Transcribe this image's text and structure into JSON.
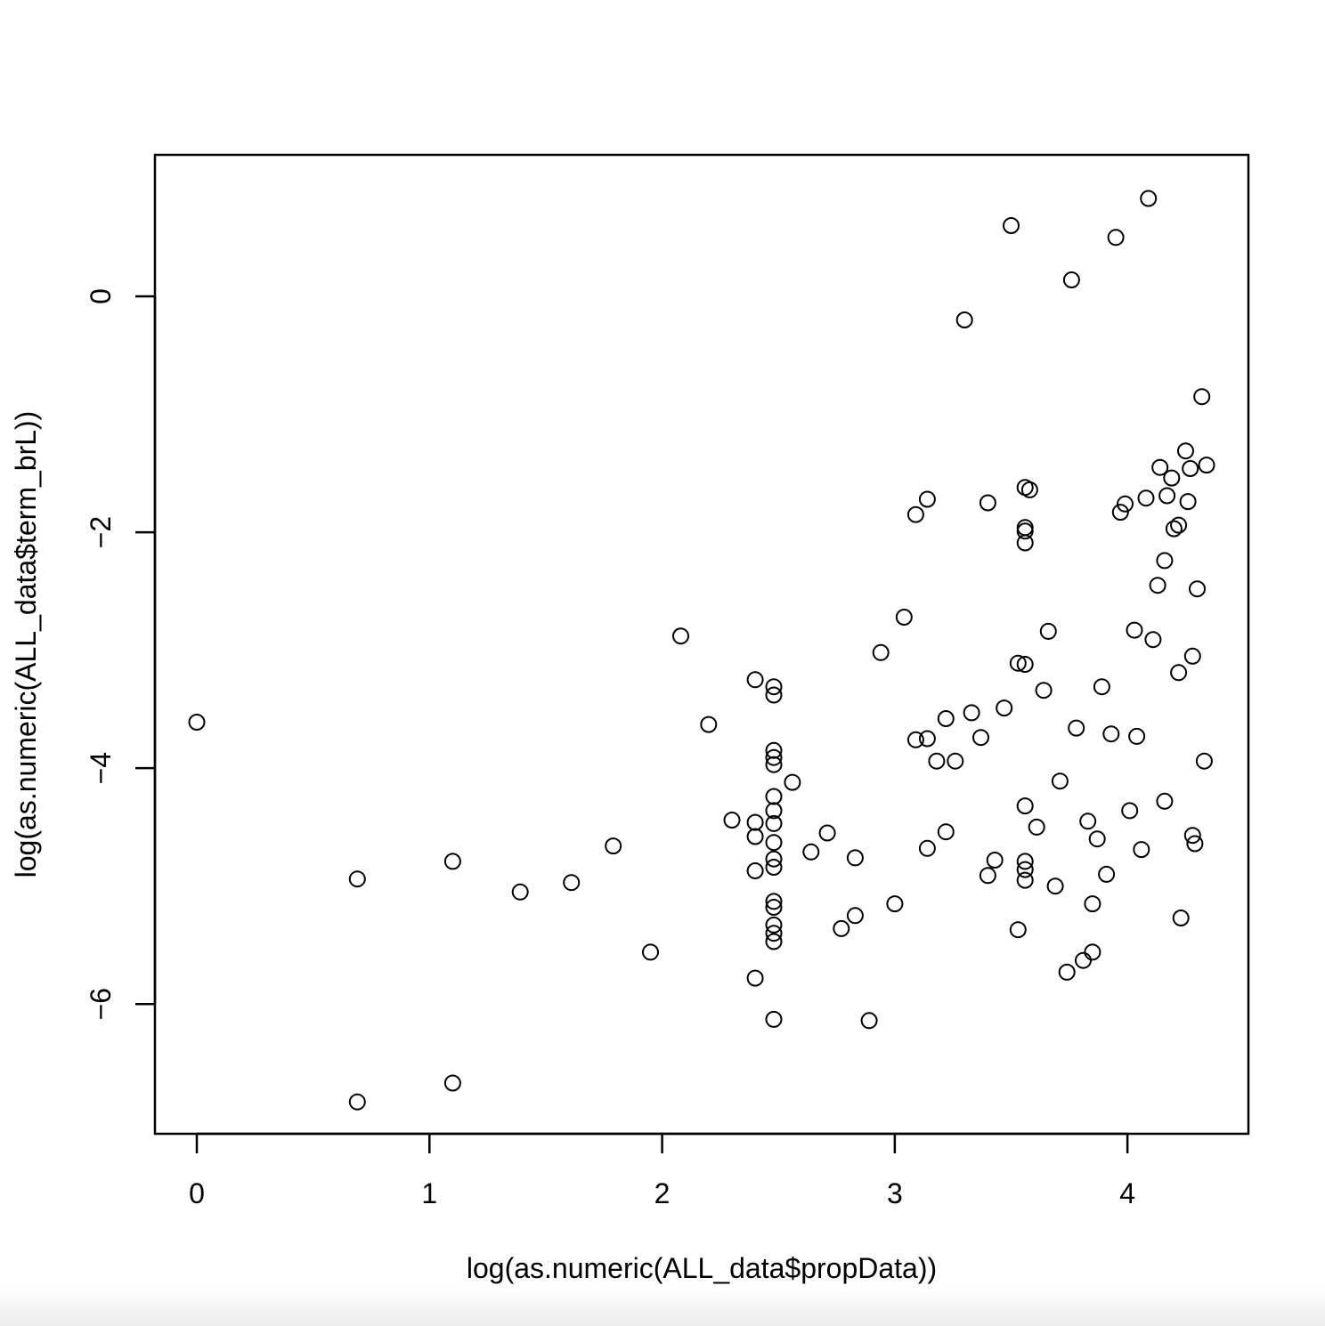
{
  "chart_data": {
    "type": "scatter",
    "title": "",
    "xlabel": "log(as.numeric(ALL_data$propData))",
    "ylabel": "log(as.numeric(ALL_data$term_brL))",
    "xlim": [
      -0.18,
      4.52
    ],
    "ylim": [
      -7.1,
      1.2
    ],
    "xticks": [
      0,
      1,
      2,
      3,
      4
    ],
    "yticks": [
      0,
      -2,
      -4,
      -6
    ],
    "grid": false,
    "legend": "none",
    "marker": "open-circle",
    "colors": {
      "marker": "#000000",
      "axis": "#000000"
    },
    "points": [
      {
        "x": 0.0,
        "y": -3.61
      },
      {
        "x": 0.69,
        "y": -4.94
      },
      {
        "x": 0.69,
        "y": -6.83
      },
      {
        "x": 1.1,
        "y": -4.79
      },
      {
        "x": 1.1,
        "y": -6.67
      },
      {
        "x": 1.39,
        "y": -5.05
      },
      {
        "x": 1.61,
        "y": -4.97
      },
      {
        "x": 1.79,
        "y": -4.66
      },
      {
        "x": 1.95,
        "y": -5.56
      },
      {
        "x": 2.08,
        "y": -2.88
      },
      {
        "x": 2.2,
        "y": -3.63
      },
      {
        "x": 2.3,
        "y": -4.44
      },
      {
        "x": 2.4,
        "y": -3.25
      },
      {
        "x": 2.4,
        "y": -4.46
      },
      {
        "x": 2.4,
        "y": -4.58
      },
      {
        "x": 2.4,
        "y": -4.87
      },
      {
        "x": 2.4,
        "y": -5.78
      },
      {
        "x": 2.48,
        "y": -3.31
      },
      {
        "x": 2.48,
        "y": -3.38
      },
      {
        "x": 2.48,
        "y": -3.85
      },
      {
        "x": 2.48,
        "y": -3.91
      },
      {
        "x": 2.48,
        "y": -3.97
      },
      {
        "x": 2.48,
        "y": -4.24
      },
      {
        "x": 2.48,
        "y": -4.36
      },
      {
        "x": 2.48,
        "y": -4.47
      },
      {
        "x": 2.48,
        "y": -4.63
      },
      {
        "x": 2.48,
        "y": -4.77
      },
      {
        "x": 2.48,
        "y": -4.84
      },
      {
        "x": 2.48,
        "y": -5.13
      },
      {
        "x": 2.48,
        "y": -5.18
      },
      {
        "x": 2.48,
        "y": -5.33
      },
      {
        "x": 2.48,
        "y": -5.4
      },
      {
        "x": 2.48,
        "y": -5.47
      },
      {
        "x": 2.48,
        "y": -6.13
      },
      {
        "x": 2.56,
        "y": -4.12
      },
      {
        "x": 2.64,
        "y": -4.71
      },
      {
        "x": 2.71,
        "y": -4.55
      },
      {
        "x": 2.77,
        "y": -5.36
      },
      {
        "x": 2.83,
        "y": -4.76
      },
      {
        "x": 2.83,
        "y": -5.25
      },
      {
        "x": 2.89,
        "y": -6.14
      },
      {
        "x": 2.94,
        "y": -3.02
      },
      {
        "x": 3.0,
        "y": -5.15
      },
      {
        "x": 3.04,
        "y": -2.72
      },
      {
        "x": 3.09,
        "y": -1.85
      },
      {
        "x": 3.09,
        "y": -3.76
      },
      {
        "x": 3.14,
        "y": -1.72
      },
      {
        "x": 3.14,
        "y": -3.75
      },
      {
        "x": 3.14,
        "y": -4.68
      },
      {
        "x": 3.18,
        "y": -3.94
      },
      {
        "x": 3.22,
        "y": -3.58
      },
      {
        "x": 3.22,
        "y": -4.54
      },
      {
        "x": 3.26,
        "y": -3.94
      },
      {
        "x": 3.3,
        "y": -0.2
      },
      {
        "x": 3.33,
        "y": -3.53
      },
      {
        "x": 3.37,
        "y": -3.74
      },
      {
        "x": 3.4,
        "y": -1.75
      },
      {
        "x": 3.4,
        "y": -4.91
      },
      {
        "x": 3.43,
        "y": -4.78
      },
      {
        "x": 3.47,
        "y": -3.49
      },
      {
        "x": 3.5,
        "y": 0.6
      },
      {
        "x": 3.53,
        "y": -3.11
      },
      {
        "x": 3.53,
        "y": -5.37
      },
      {
        "x": 3.56,
        "y": -1.62
      },
      {
        "x": 3.56,
        "y": -1.96
      },
      {
        "x": 3.56,
        "y": -1.99
      },
      {
        "x": 3.56,
        "y": -2.09
      },
      {
        "x": 3.56,
        "y": -3.12
      },
      {
        "x": 3.56,
        "y": -4.32
      },
      {
        "x": 3.56,
        "y": -4.79
      },
      {
        "x": 3.56,
        "y": -4.86
      },
      {
        "x": 3.56,
        "y": -4.95
      },
      {
        "x": 3.58,
        "y": -1.64
      },
      {
        "x": 3.61,
        "y": -4.5
      },
      {
        "x": 3.64,
        "y": -3.34
      },
      {
        "x": 3.66,
        "y": -2.84
      },
      {
        "x": 3.69,
        "y": -5.0
      },
      {
        "x": 3.71,
        "y": -4.11
      },
      {
        "x": 3.74,
        "y": -5.73
      },
      {
        "x": 3.76,
        "y": 0.14
      },
      {
        "x": 3.78,
        "y": -3.66
      },
      {
        "x": 3.81,
        "y": -5.63
      },
      {
        "x": 3.83,
        "y": -4.45
      },
      {
        "x": 3.85,
        "y": -5.15
      },
      {
        "x": 3.85,
        "y": -5.56
      },
      {
        "x": 3.87,
        "y": -4.6
      },
      {
        "x": 3.89,
        "y": -3.31
      },
      {
        "x": 3.91,
        "y": -4.9
      },
      {
        "x": 3.93,
        "y": -3.71
      },
      {
        "x": 3.95,
        "y": 0.5
      },
      {
        "x": 3.97,
        "y": -1.83
      },
      {
        "x": 3.99,
        "y": -1.76
      },
      {
        "x": 4.01,
        "y": -4.36
      },
      {
        "x": 4.03,
        "y": -2.83
      },
      {
        "x": 4.04,
        "y": -3.73
      },
      {
        "x": 4.06,
        "y": -4.69
      },
      {
        "x": 4.08,
        "y": -1.71
      },
      {
        "x": 4.09,
        "y": 0.83
      },
      {
        "x": 4.11,
        "y": -2.91
      },
      {
        "x": 4.13,
        "y": -2.45
      },
      {
        "x": 4.14,
        "y": -1.45
      },
      {
        "x": 4.16,
        "y": -2.24
      },
      {
        "x": 4.16,
        "y": -4.28
      },
      {
        "x": 4.17,
        "y": -1.69
      },
      {
        "x": 4.19,
        "y": -1.54
      },
      {
        "x": 4.2,
        "y": -1.97
      },
      {
        "x": 4.22,
        "y": -1.94
      },
      {
        "x": 4.22,
        "y": -3.19
      },
      {
        "x": 4.23,
        "y": -5.27
      },
      {
        "x": 4.25,
        "y": -1.31
      },
      {
        "x": 4.26,
        "y": -1.74
      },
      {
        "x": 4.27,
        "y": -1.46
      },
      {
        "x": 4.28,
        "y": -3.05
      },
      {
        "x": 4.28,
        "y": -4.57
      },
      {
        "x": 4.29,
        "y": -4.64
      },
      {
        "x": 4.3,
        "y": -2.48
      },
      {
        "x": 4.32,
        "y": -0.85
      },
      {
        "x": 4.33,
        "y": -3.94
      },
      {
        "x": 4.34,
        "y": -1.43
      }
    ]
  }
}
